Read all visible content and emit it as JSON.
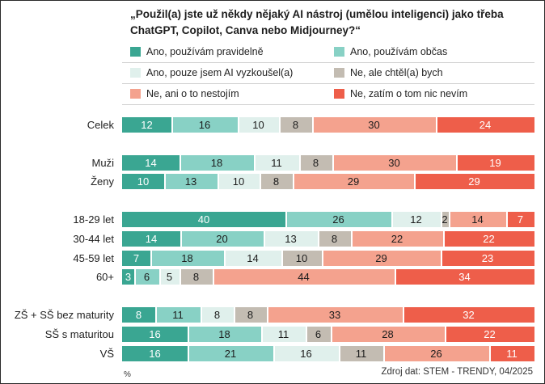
{
  "chart_data": {
    "type": "bar",
    "orientation": "horizontal",
    "stacked": true,
    "title": "„Použil(a) jste už někdy nějaký AI nástroj (umělou inteligenci) jako třeba ChatGPT, Copilot, Canva nebo Midjourney?“",
    "unit": "%",
    "source": "Zdroj dat: STEM - TRENDY, 04/2025",
    "xlim": [
      0,
      100
    ],
    "legend_position": "top",
    "categories": [
      "Celek",
      "Muži",
      "Ženy",
      "18-29 let",
      "30-44 let",
      "45-59 let",
      "60+",
      "ZŠ + SŠ bez maturity",
      "SŠ s maturitou",
      "VŠ"
    ],
    "series": [
      {
        "name": "Ano, používám pravidelně",
        "color": "#3aa692",
        "text_color": "#ffffff",
        "values": [
          12,
          14,
          10,
          40,
          14,
          7,
          3,
          8,
          16,
          16
        ]
      },
      {
        "name": "Ano, používám občas",
        "color": "#88d1c5",
        "text_color": "#1d1d1d",
        "values": [
          16,
          18,
          13,
          26,
          20,
          18,
          6,
          11,
          18,
          21
        ]
      },
      {
        "name": "Ano, pouze jsem AI vyzkoušel(a)",
        "color": "#e0f0ec",
        "text_color": "#1d1d1d",
        "values": [
          10,
          11,
          10,
          12,
          13,
          14,
          5,
          8,
          11,
          16
        ]
      },
      {
        "name": "Ne, ale chtěl(a) bych",
        "color": "#c3bcb2",
        "text_color": "#1d1d1d",
        "values": [
          8,
          8,
          8,
          2,
          8,
          10,
          8,
          8,
          6,
          11
        ]
      },
      {
        "name": "Ne, ani o to nestojím",
        "color": "#f4a28e",
        "text_color": "#1d1d1d",
        "values": [
          30,
          30,
          29,
          14,
          22,
          29,
          44,
          33,
          28,
          26
        ]
      },
      {
        "name": "Ne, zatím o tom nic nevím",
        "color": "#ee5e4a",
        "text_color": "#ffffff",
        "values": [
          24,
          19,
          29,
          7,
          22,
          23,
          34,
          32,
          22,
          11
        ]
      }
    ]
  }
}
